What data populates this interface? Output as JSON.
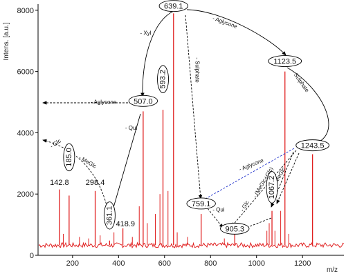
{
  "chart_data": {
    "type": "line",
    "xlabel": "m/z",
    "ylabel": "Intens. [a.u.]",
    "xlim": [
      50,
      1380
    ],
    "ylim": [
      0,
      8200
    ],
    "x_ticks": [
      200,
      400,
      600,
      800,
      1000,
      1200
    ],
    "y_ticks": [
      0,
      2000,
      4000,
      6000,
      8000
    ],
    "baseline": 330,
    "colors": {
      "spectrum": "#e02020",
      "axis": "#000000",
      "arrow": "#000000",
      "blue_arrow": "#2233cc"
    },
    "peaks": [
      {
        "x": 142.8,
        "y": 2150
      },
      {
        "x": 185.0,
        "y": 1950
      },
      {
        "x": 298.4,
        "y": 2100
      },
      {
        "x": 361.1,
        "y": 480
      },
      {
        "x": 418.9,
        "y": 880
      },
      {
        "x": 507.0,
        "y": 4700
      },
      {
        "x": 593.2,
        "y": 4750
      },
      {
        "x": 639.1,
        "y": 7900
      },
      {
        "x": 759.1,
        "y": 1350
      },
      {
        "x": 905.3,
        "y": 700
      },
      {
        "x": 1067.2,
        "y": 1450
      },
      {
        "x": 1123.5,
        "y": 6000
      },
      {
        "x": 1243.5,
        "y": 3300
      }
    ],
    "minor_peaks": [
      {
        "x": 160,
        "y": 700
      },
      {
        "x": 230,
        "y": 600
      },
      {
        "x": 270,
        "y": 550
      },
      {
        "x": 320,
        "y": 650
      },
      {
        "x": 380,
        "y": 750
      },
      {
        "x": 460,
        "y": 600
      },
      {
        "x": 490,
        "y": 1600
      },
      {
        "x": 525,
        "y": 1050
      },
      {
        "x": 560,
        "y": 1350
      },
      {
        "x": 580,
        "y": 2000
      },
      {
        "x": 615,
        "y": 2100
      },
      {
        "x": 655,
        "y": 750
      },
      {
        "x": 700,
        "y": 600
      },
      {
        "x": 860,
        "y": 550
      },
      {
        "x": 1045,
        "y": 800
      },
      {
        "x": 1055,
        "y": 1050
      },
      {
        "x": 1080,
        "y": 800
      },
      {
        "x": 1105,
        "y": 1450
      },
      {
        "x": 1140,
        "y": 700
      }
    ],
    "peak_labels": [
      {
        "text": "142.8",
        "x": 142.8,
        "y": 2300,
        "boxed": false,
        "vertical": false
      },
      {
        "text": "185.0",
        "x": 185.0,
        "y": 2800,
        "boxed": true,
        "vertical": true
      },
      {
        "text": "298.4",
        "x": 298.4,
        "y": 2300,
        "boxed": false,
        "vertical": false
      },
      {
        "text": "361.1",
        "x": 361.1,
        "y": 900,
        "boxed": true,
        "vertical": true
      },
      {
        "text": "418.9",
        "x": 430,
        "y": 950,
        "boxed": false,
        "vertical": false
      },
      {
        "text": "507.0",
        "x": 507.0,
        "y": 4950,
        "boxed": true,
        "vertical": false
      },
      {
        "text": "593.2",
        "x": 593.2,
        "y": 5350,
        "boxed": true,
        "vertical": true
      },
      {
        "text": "639.1",
        "x": 639.1,
        "y": 8050,
        "boxed": true,
        "vertical": false
      },
      {
        "text": "759.1",
        "x": 759.1,
        "y": 1600,
        "boxed": true,
        "vertical": false
      },
      {
        "text": "905.3",
        "x": 905.3,
        "y": 780,
        "boxed": true,
        "vertical": false
      },
      {
        "text": "1067.2",
        "x": 1067.2,
        "y": 1750,
        "boxed": true,
        "vertical": true
      },
      {
        "text": "1123.5",
        "x": 1123.5,
        "y": 6250,
        "boxed": true,
        "vertical": false
      },
      {
        "text": "1243.5",
        "x": 1243.5,
        "y": 3500,
        "boxed": true,
        "vertical": false
      }
    ],
    "annotations": [
      {
        "text": "- Xyl",
        "x": 518,
        "y": 7200,
        "angle": 0
      },
      {
        "text": "- Aglycone",
        "x": 860,
        "y": 7550,
        "angle": 20
      },
      {
        "text": "- Sulphate",
        "x": 735,
        "y": 6050,
        "angle": 90
      },
      {
        "text": "- Sulphate",
        "x": 1185,
        "y": 5650,
        "angle": 55
      },
      {
        "text": "- Aglycone",
        "x": 335,
        "y": 4950,
        "angle": 0
      },
      {
        "text": "- Qui",
        "x": 455,
        "y": 4100,
        "angle": 0
      },
      {
        "text": "- Glc",
        "x": 130,
        "y": 3600,
        "angle": -35
      },
      {
        "text": "- MeGlc",
        "x": 262,
        "y": 3000,
        "angle": 30
      },
      {
        "text": "- Aglycone",
        "x": 980,
        "y": 2900,
        "angle": -22
      },
      {
        "text": "- Qui",
        "x": 835,
        "y": 1430,
        "angle": 0
      },
      {
        "text": "- Glc",
        "x": 955,
        "y": 1580,
        "angle": -60
      },
      {
        "text": "- (MeGlc+Glc)",
        "x": 1035,
        "y": 2350,
        "angle": -60
      },
      {
        "text": "- MeGlc",
        "x": 1105,
        "y": 2550,
        "angle": -60
      }
    ]
  }
}
